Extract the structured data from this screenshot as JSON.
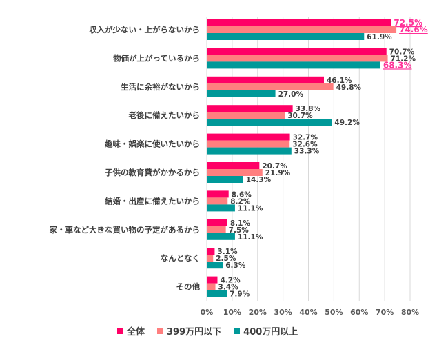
{
  "chart_data": {
    "type": "bar",
    "orientation": "horizontal",
    "categories": [
      "収入が少ない・上がらないから",
      "物価が上がっているから",
      "生活に余裕がないから",
      "老後に備えたいから",
      "趣味・娯楽に使いたいから",
      "子供の教育費がかかるから",
      "結婚・出産に備えたいから",
      "家・車など大きな買い物の予定があるから",
      "なんとなく",
      "その他"
    ],
    "series": [
      {
        "name": "全体",
        "color": "#ff0066",
        "values": [
          72.5,
          70.7,
          46.1,
          33.8,
          32.7,
          20.7,
          8.6,
          8.1,
          3.1,
          4.2
        ]
      },
      {
        "name": "399万円以下",
        "color": "#ff7f7f",
        "values": [
          74.6,
          71.2,
          49.8,
          30.7,
          32.6,
          21.9,
          8.2,
          7.5,
          2.5,
          3.4
        ]
      },
      {
        "name": "400万円以上",
        "color": "#009999",
        "values": [
          61.9,
          68.3,
          27.0,
          49.2,
          33.3,
          14.3,
          11.1,
          11.1,
          6.3,
          7.9
        ]
      }
    ],
    "highlighted_labels": [
      [
        0,
        0
      ],
      [
        0,
        1
      ],
      [
        1,
        2
      ]
    ],
    "highlight_color": "#ff3399",
    "xlim": [
      0,
      80
    ],
    "xticks": [
      "0%",
      "10%",
      "20%",
      "30%",
      "40%",
      "50%",
      "60%",
      "70%",
      "80%"
    ],
    "grid": true,
    "legend_position": "bottom-left",
    "value_format": "%"
  }
}
